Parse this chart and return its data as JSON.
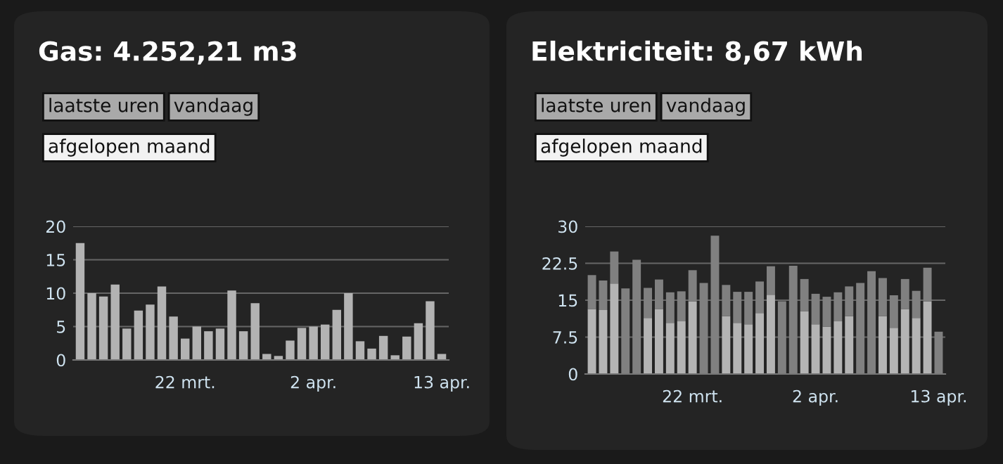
{
  "chart_data": [
    {
      "type": "bar",
      "title": "Gas: 4.252,21 m3",
      "annotations": [
        "laatste uren",
        "vandaag",
        "afgelopen maand"
      ],
      "categories": [
        null,
        null,
        null,
        null,
        null,
        null,
        null,
        null,
        null,
        "22 mrt.",
        null,
        null,
        null,
        null,
        null,
        null,
        null,
        null,
        null,
        null,
        "2 apr.",
        null,
        null,
        null,
        null,
        null,
        null,
        null,
        null,
        null,
        null,
        "13 apr."
      ],
      "values": [
        17.5,
        10,
        9.5,
        11.3,
        4.7,
        7.4,
        8.3,
        11,
        6.5,
        3.2,
        5,
        4.3,
        4.7,
        10.4,
        4.3,
        8.5,
        0.9,
        0.6,
        2.9,
        4.8,
        5,
        5.3,
        7.5,
        10,
        2.8,
        1.7,
        3.6,
        0.7,
        3.5,
        5.5,
        8.8,
        0.9
      ],
      "color": "#b3b3b3",
      "ylim": [
        0,
        20
      ],
      "yticks": [
        0,
        5,
        10,
        15,
        20
      ],
      "grid": "y"
    },
    {
      "type": "bar",
      "title": "Elektriciteit: 8,67 kWh",
      "annotations": [
        "laatste uren",
        "vandaag",
        "afgelopen maand"
      ],
      "categories": [
        null,
        null,
        null,
        null,
        null,
        null,
        null,
        null,
        null,
        "22 mrt.",
        null,
        null,
        null,
        null,
        null,
        null,
        null,
        null,
        null,
        null,
        "2 apr.",
        null,
        null,
        null,
        null,
        null,
        null,
        null,
        null,
        null,
        null,
        "13 apr."
      ],
      "stacked": true,
      "series": [
        {
          "color": "#b4b4b4",
          "values": [
            13.2,
            13.0,
            18.4,
            null,
            null,
            11.4,
            13.2,
            10.4,
            10.7,
            14.8,
            null,
            null,
            11.8,
            10.4,
            10.1,
            12.4,
            16.1,
            null,
            null,
            12.8,
            10.1,
            9.6,
            10.7,
            11.8,
            null,
            null,
            11.8,
            9.4,
            13.2,
            11.4,
            14.8,
            null
          ]
        },
        {
          "color": "#808080",
          "values": [
            6.9,
            6.0,
            6.5,
            17.4,
            23.2,
            6.1,
            6.0,
            6.2,
            6.1,
            6.3,
            18.5,
            28.1,
            6.3,
            6.3,
            6.6,
            6.4,
            5.8,
            14.8,
            22.0,
            6.5,
            6.2,
            6.1,
            5.9,
            6.0,
            18.5,
            20.9,
            7.7,
            6.6,
            6.1,
            5.5,
            6.8,
            8.6
          ]
        }
      ],
      "ylim": [
        0,
        30
      ],
      "yticks": [
        0,
        7.5,
        15,
        22.5,
        30
      ],
      "grid": "y"
    }
  ]
}
